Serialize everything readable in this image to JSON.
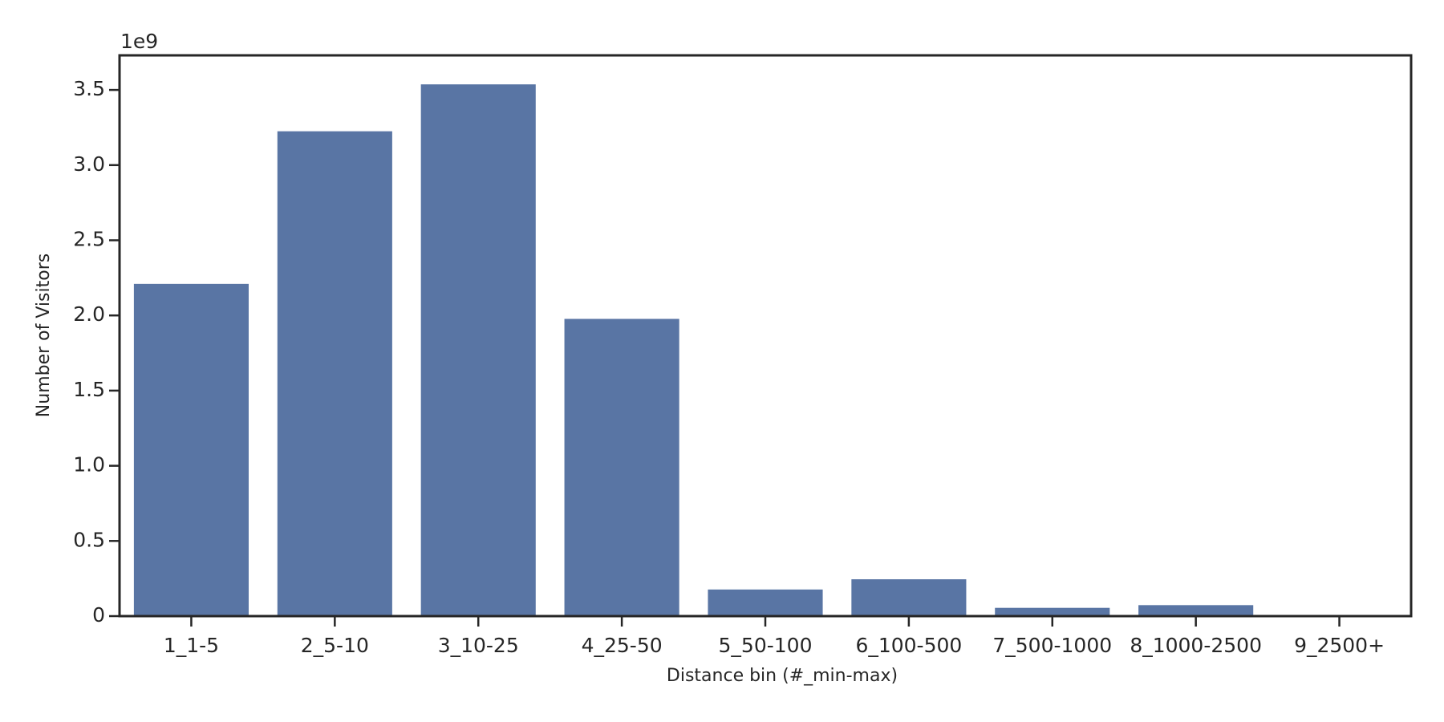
{
  "chart_data": {
    "type": "bar",
    "x_label": "Distance bin (#_min-max)",
    "y_label": "Number of Visitors",
    "y_offset_label": "1e9",
    "categories": [
      "1_1-5",
      "2_5-10",
      "3_10-25",
      "4_25-50",
      "5_50-100",
      "6_100-500",
      "7_500-1000",
      "8_1000-2500",
      "9_2500+"
    ],
    "values": [
      2210000000,
      3225000000,
      3537000000,
      1977000000,
      177000000,
      245000000,
      55000000,
      73000000,
      0
    ],
    "color": "#5975a4",
    "ylim": [
      0,
      3730000000
    ],
    "yticks": [
      0,
      {
        "value": 500000000,
        "label": "0.5"
      },
      {
        "value": 1000000000,
        "label": "1.0"
      },
      {
        "value": 1500000000,
        "label": "1.5"
      },
      {
        "value": 2000000000,
        "label": "2.0"
      },
      {
        "value": 2500000000,
        "label": "2.5"
      },
      {
        "value": 3000000000,
        "label": "3.0"
      },
      {
        "value": 3500000000,
        "label": "3.5"
      }
    ],
    "grid": false
  }
}
